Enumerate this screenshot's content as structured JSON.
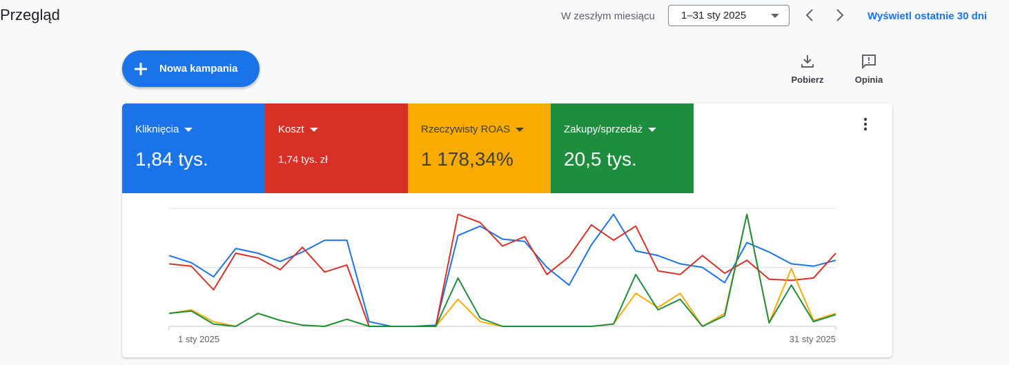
{
  "header": {
    "title": "Przegląd",
    "period_label": "W zeszłym miesiącu",
    "date_range": "1–31 sty 2025",
    "link": "Wyświetl ostatnie 30 dni"
  },
  "toolbar": {
    "new_campaign": "Nowa kampania",
    "download": "Pobierz",
    "feedback": "Opinia"
  },
  "chart_data": {
    "type": "line",
    "categories": [
      "1 sty 2025",
      null,
      null,
      null,
      null,
      null,
      null,
      null,
      null,
      null,
      null,
      null,
      null,
      null,
      null,
      null,
      null,
      null,
      null,
      null,
      null,
      null,
      null,
      null,
      null,
      null,
      null,
      null,
      null,
      null,
      "31 sty 2025"
    ],
    "ylim": [
      0,
      100
    ],
    "gridlines": [
      0,
      50,
      100
    ],
    "grid": true,
    "series": [
      {
        "name": "Kliknięcia",
        "summary": "1,84 tys.",
        "color": "#1a73e8",
        "values": [
          60,
          54,
          42,
          66,
          62,
          55,
          63,
          73,
          73,
          4,
          0,
          0,
          1,
          77,
          85,
          74,
          72,
          50,
          35,
          69,
          95,
          64,
          60,
          53,
          50,
          37,
          71,
          63,
          53,
          51,
          56
        ]
      },
      {
        "name": "Koszt",
        "summary": "1,74 tys. zł",
        "color": "#d93025",
        "values": [
          53,
          51,
          31,
          62,
          58,
          48,
          67,
          46,
          52,
          0,
          0,
          0,
          0,
          95,
          88,
          68,
          76,
          44,
          59,
          86,
          73,
          85,
          47,
          44,
          60,
          45,
          56,
          40,
          39,
          41,
          62
        ]
      },
      {
        "name": "Rzeczywisty ROAS",
        "summary": "1 178,34%",
        "color": "#f9ab00",
        "values": [
          11,
          14,
          4,
          0,
          11,
          5,
          1,
          0,
          6,
          0,
          0,
          0,
          0,
          23,
          4,
          0,
          0,
          0,
          0,
          0,
          2,
          28,
          16,
          28,
          0,
          11,
          95,
          3,
          49,
          5,
          11
        ]
      },
      {
        "name": "Zakupy/sprzedaż",
        "summary": "20,5 tys.",
        "color": "#1e8e3e",
        "values": [
          11,
          13,
          2,
          0,
          11,
          5,
          1,
          0,
          6,
          0,
          0,
          0,
          0,
          41,
          7,
          0,
          0,
          0,
          0,
          0,
          2,
          44,
          14,
          23,
          0,
          9,
          95,
          3,
          35,
          4,
          10
        ]
      }
    ]
  }
}
